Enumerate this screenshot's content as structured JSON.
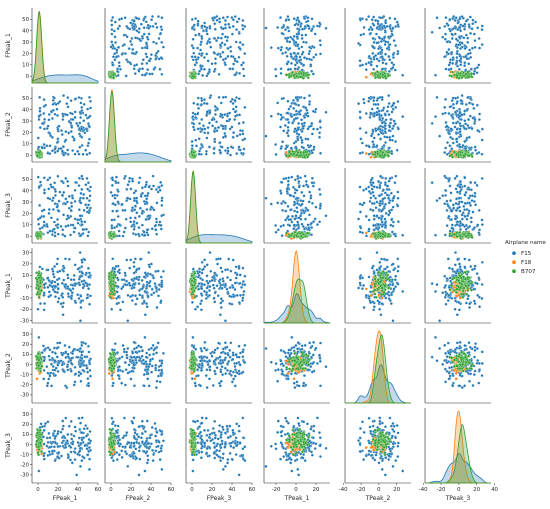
{
  "chart_data": {
    "type": "scatter",
    "subtype": "pairplot",
    "variables": [
      "FPeak_1",
      "FPeak_2",
      "FPeak_3",
      "TPeak_1",
      "TPeak_2",
      "TPeak_3"
    ],
    "ranges": {
      "FPeak_1": [
        -6,
        60
      ],
      "FPeak_2": [
        -6,
        60
      ],
      "FPeak_3": [
        -6,
        60
      ],
      "TPeak_1": [
        -32,
        34
      ],
      "TPeak_2": [
        -38,
        36
      ],
      "TPeak_3": [
        -38,
        36
      ]
    },
    "ticks": {
      "FPeak_1": [
        0,
        10,
        20,
        30,
        40,
        50
      ],
      "FPeak_2": [
        0,
        10,
        20,
        30,
        40,
        50
      ],
      "FPeak_3": [
        0,
        10,
        20,
        30,
        40,
        50
      ],
      "TPeak_1": [
        -30,
        -20,
        -10,
        0,
        10,
        20,
        30
      ],
      "TPeak_2": [
        -30,
        -20,
        -10,
        0,
        10,
        20,
        30
      ],
      "TPeak_3": [
        -30,
        -20,
        -10,
        0,
        10,
        20,
        30
      ]
    },
    "bottom_ticks": {
      "FPeak_1": [
        0,
        20,
        40,
        60
      ],
      "FPeak_2": [
        0,
        20,
        40,
        60
      ],
      "FPeak_3": [
        0,
        20,
        40,
        60
      ],
      "TPeak_1": [
        -20,
        0,
        20
      ],
      "TPeak_2": [
        -40,
        -20,
        0,
        20
      ],
      "TPeak_3": [
        -40,
        -20,
        0,
        20,
        40
      ]
    },
    "legend": {
      "title": "Airplane name",
      "position": "right",
      "entries": [
        {
          "name": "F15",
          "color": "#1f77b4"
        },
        {
          "name": "F18",
          "color": "#ff7f0e"
        },
        {
          "name": "B707",
          "color": "#2ca02c"
        }
      ]
    },
    "series": [
      {
        "name": "F15",
        "color": "#1f77b4",
        "FPeak": {
          "type": "uniform",
          "range": [
            0,
            53
          ]
        },
        "TPeak": {
          "type": "normal",
          "mean": 2,
          "sd": 11,
          "range": [
            -30,
            30
          ]
        },
        "n_points": 170
      },
      {
        "name": "F18",
        "color": "#ff7f0e",
        "FPeak": {
          "type": "cluster",
          "center": 1,
          "spread": 2.5
        },
        "TPeak": {
          "type": "normal",
          "mean": 0,
          "sd": 3.5
        },
        "n_points": 90
      },
      {
        "name": "B707",
        "color": "#2ca02c",
        "FPeak": {
          "type": "cluster",
          "center": 1,
          "spread": 2.5
        },
        "TPeak": {
          "type": "normal",
          "mean": 3,
          "sd": 5
        },
        "n_points": 90
      }
    ],
    "diagonal": "kde",
    "grid": false
  }
}
